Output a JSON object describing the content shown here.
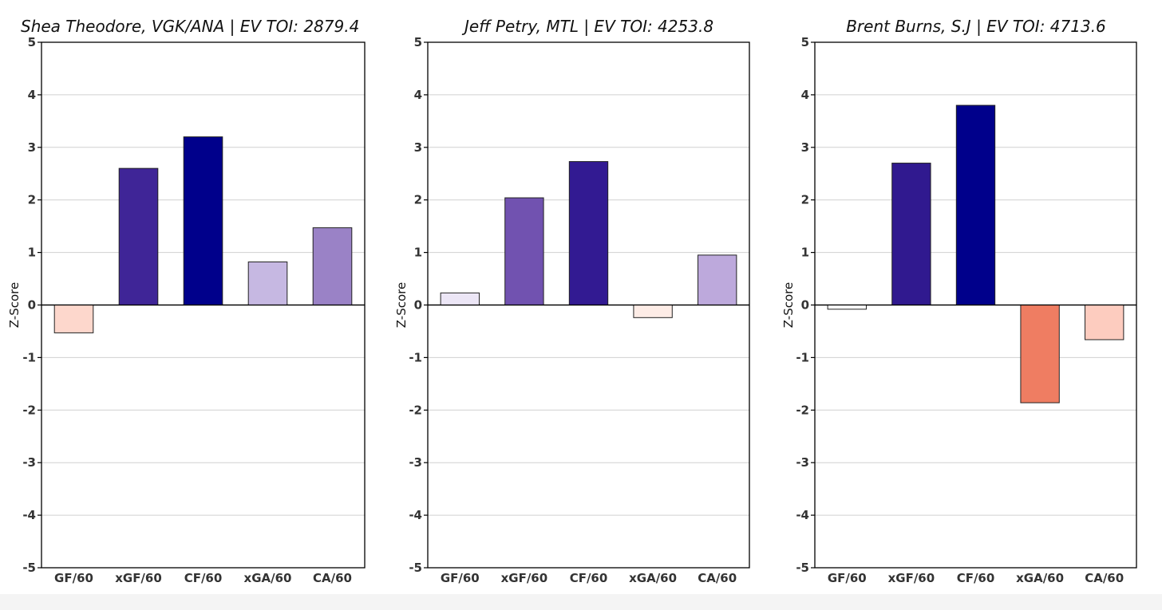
{
  "chart_data": [
    {
      "type": "bar",
      "title": "Shea Theodore, VGK/ANA  |  EV TOI: 2879.4",
      "xlabel": "",
      "ylabel": "Z-Score",
      "ylim": [
        -5,
        5
      ],
      "yticks": [
        "-5",
        "-4",
        "-3",
        "-2",
        "-1",
        "0",
        "1",
        "2",
        "3",
        "4",
        "5"
      ],
      "categories": [
        "GF/60",
        "xGF/60",
        "CF/60",
        "xGA/60",
        "CA/60"
      ],
      "values": [
        -0.53,
        2.6,
        3.2,
        0.82,
        1.47
      ],
      "colors": [
        "#fdd7cc",
        "#3f2597",
        "#00008b",
        "#c6b8e2",
        "#9a82c6"
      ],
      "grid": "horizontal"
    },
    {
      "type": "bar",
      "title": "Jeff Petry, MTL  |  EV TOI: 4253.8",
      "xlabel": "",
      "ylabel": "Z-Score",
      "ylim": [
        -5,
        5
      ],
      "yticks": [
        "-5",
        "-4",
        "-3",
        "-2",
        "-1",
        "0",
        "1",
        "2",
        "3",
        "4",
        "5"
      ],
      "categories": [
        "GF/60",
        "xGF/60",
        "CF/60",
        "xGA/60",
        "CA/60"
      ],
      "values": [
        0.23,
        2.04,
        2.73,
        -0.24,
        0.95
      ],
      "colors": [
        "#ece6f6",
        "#7152b0",
        "#321a92",
        "#fdece6",
        "#bda9dc"
      ],
      "grid": "horizontal"
    },
    {
      "type": "bar",
      "title": "Brent Burns, S.J  |  EV TOI: 4713.6",
      "xlabel": "",
      "ylabel": "Z-Score",
      "ylim": [
        -5,
        5
      ],
      "yticks": [
        "-5",
        "-4",
        "-3",
        "-2",
        "-1",
        "0",
        "1",
        "2",
        "3",
        "4",
        "5"
      ],
      "categories": [
        "GF/60",
        "xGF/60",
        "CF/60",
        "xGA/60",
        "CA/60"
      ],
      "values": [
        -0.08,
        2.7,
        3.8,
        -1.86,
        -0.66
      ],
      "colors": [
        "#ffffff",
        "#30198f",
        "#00008b",
        "#ef7d62",
        "#fdccbf"
      ],
      "grid": "horizontal"
    }
  ]
}
